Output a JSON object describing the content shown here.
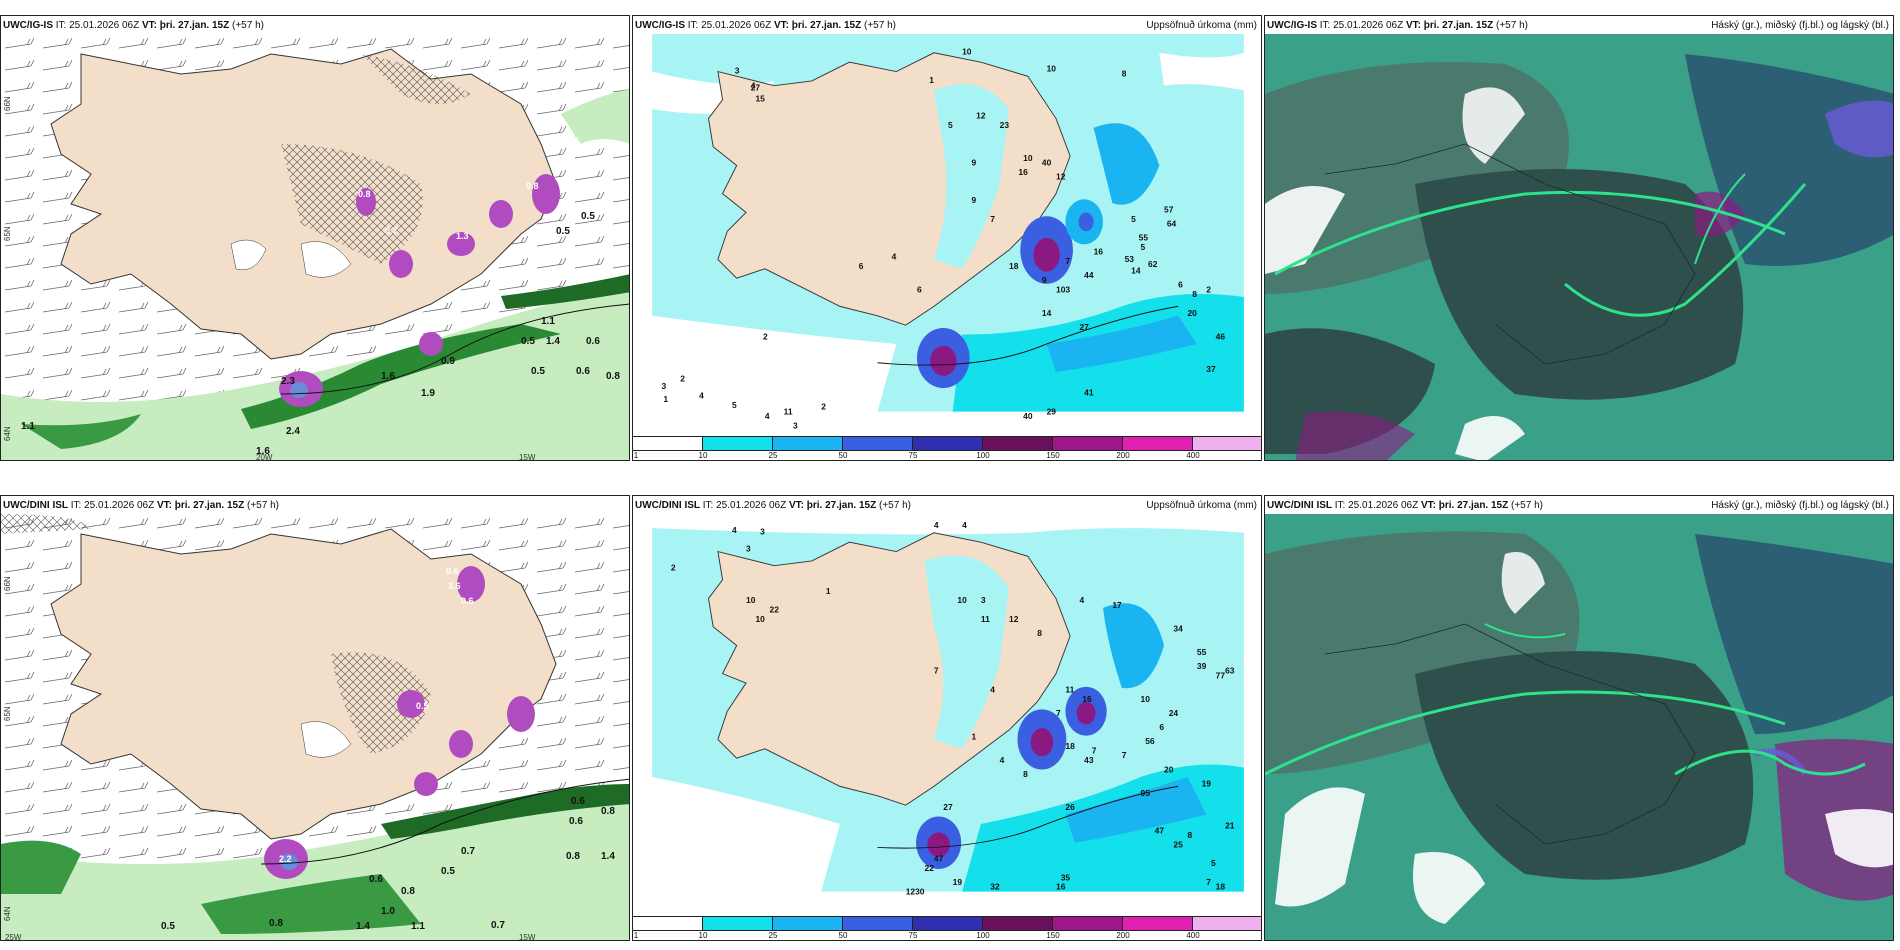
{
  "colors": {
    "land": "#f3dfc9",
    "precip_light": "#a8f4f4",
    "precip_mid": "#13e0ea",
    "precip_strong": "#1ab4f0",
    "precip_dark": "#3a5fe0",
    "precip_purple": "#8a1a82",
    "cloud_dark": "#2f4f4c",
    "cloud_teal": "#3aa088",
    "cloud_green": "#2ee28c",
    "wind_green": "#1f8a2d"
  },
  "panels": [
    {
      "id": "p1",
      "model": "UWC/IG-IS",
      "it_label": "IT:",
      "it_value": "25.01.2026 06Z",
      "vt_label": "VT:",
      "vt_value": "þri. 27.jan. 15Z",
      "lead": "(+57 h)",
      "right_title": "",
      "lat_labels": [
        "66N",
        "65N",
        "64N"
      ],
      "lon_labels": [
        "20W",
        "15W"
      ],
      "values": [
        "0.8",
        "0.7",
        "1.3",
        "0.5",
        "0.8",
        "0.5",
        "1.4",
        "0.6",
        "1.6",
        "1.9",
        "2.3",
        "0.5",
        "2.4",
        "1.1",
        "1.6",
        "0.5",
        "0.6",
        "0.8",
        "1.1",
        "0.9"
      ]
    },
    {
      "id": "p2",
      "model": "UWC/IG-IS",
      "it_label": "IT:",
      "it_value": "25.01.2026 06Z",
      "vt_label": "VT:",
      "vt_value": "þri. 27.jan. 15Z",
      "lead": "(+57 h)",
      "right_title": "Uppsöfnuð úrkoma (mm)",
      "numbers": [
        "3",
        "4",
        "1",
        "10",
        "10",
        "8",
        "5",
        "12",
        "23",
        "9",
        "9",
        "7",
        "16",
        "40",
        "5",
        "18",
        "10",
        "12",
        "57",
        "64",
        "9",
        "7",
        "16",
        "5",
        "55",
        "14",
        "62",
        "53",
        "6",
        "8",
        "2",
        "4",
        "6",
        "6",
        "103",
        "44",
        "27",
        "14",
        "20",
        "46",
        "37",
        "41",
        "29",
        "40",
        "3",
        "2",
        "4",
        "5",
        "4",
        "3",
        "2",
        "1",
        "2",
        "11",
        "27",
        "15"
      ],
      "colorbar": [
        "1",
        "10",
        "25",
        "50",
        "75",
        "100",
        "150",
        "200",
        "400"
      ]
    },
    {
      "id": "p3",
      "model": "UWC/IG-IS",
      "it_label": "IT:",
      "it_value": "25.01.2026 06Z",
      "vt_label": "VT:",
      "vt_value": "þri. 27.jan. 15Z",
      "lead": "(+57 h)",
      "right_title": "Háský (gr.), miðský (fj.bl.) og lágský (bl.)"
    },
    {
      "id": "p4",
      "model": "UWC/DINI ISL",
      "it_label": "IT:",
      "it_value": "25.01.2026 06Z",
      "vt_label": "VT:",
      "vt_value": "þri. 27.jan. 15Z",
      "lead": "(+57 h)",
      "right_title": "",
      "lat_labels": [
        "66N",
        "65N",
        "64N"
      ],
      "lon_labels": [
        "25W",
        "15W"
      ],
      "values": [
        "0.6",
        "3.6",
        "0.6",
        "0.5",
        "2.2",
        "0.5",
        "0.6",
        "0.8",
        "0.7",
        "1.0",
        "0.6",
        "0.8",
        "1.4",
        "1.1",
        "0.5",
        "0.8",
        "0.7",
        "0.6",
        "0.8",
        "1.4"
      ]
    },
    {
      "id": "p5",
      "model": "UWC/DINI ISL",
      "it_label": "IT:",
      "it_value": "25.01.2026 06Z",
      "vt_label": "VT:",
      "vt_value": "þri. 27.jan. 15Z",
      "lead": "(+57 h)",
      "right_title": "Uppsöfnuð úrkoma (mm)",
      "numbers": [
        "4",
        "3",
        "3",
        "4",
        "2",
        "4",
        "10",
        "22",
        "1",
        "10",
        "11",
        "12",
        "4",
        "7",
        "3",
        "10",
        "8",
        "4",
        "17",
        "34",
        "55",
        "39",
        "63",
        "77",
        "1",
        "18",
        "10",
        "6",
        "11",
        "16",
        "24",
        "56",
        "43",
        "20",
        "19",
        "95",
        "26",
        "47",
        "8",
        "21",
        "25",
        "5",
        "18",
        "35",
        "32",
        "16",
        "47",
        "30",
        "19",
        "12",
        "7",
        "22",
        "27",
        "4",
        "8",
        "7",
        "7",
        "7"
      ],
      "colorbar": [
        "1",
        "10",
        "25",
        "50",
        "75",
        "100",
        "150",
        "200",
        "400"
      ]
    },
    {
      "id": "p6",
      "model": "UWC/DINI ISL",
      "it_label": "IT:",
      "it_value": "25.01.2026 06Z",
      "vt_label": "VT:",
      "vt_value": "þri. 27.jan. 15Z",
      "lead": "(+57 h)",
      "right_title": "Háský (gr.), miðský (fj.bl.) og lágský (bl.)"
    }
  ]
}
